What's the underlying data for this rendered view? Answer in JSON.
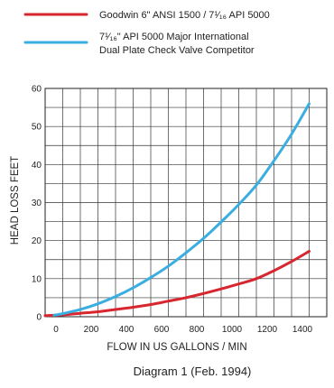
{
  "chart_data": {
    "type": "line",
    "title": "",
    "caption": "Diagram 1 (Feb. 1994)",
    "xlabel": "FLOW IN US GALLONS / MIN",
    "ylabel": "HEAD LOSS FEET",
    "xlim": [
      0,
      1600
    ],
    "ylim": [
      0,
      60
    ],
    "xticks": [
      0,
      200,
      400,
      600,
      800,
      1000,
      1200,
      1400
    ],
    "yticks": [
      0,
      10,
      20,
      30,
      40,
      50,
      60
    ],
    "grid": true,
    "legend_position": "top",
    "series": [
      {
        "name": "Goodwin 6\" ANSI 1500 / 7¹⁄₁₆ API 5000",
        "color": "#d7262e",
        "x": [
          0,
          100,
          200,
          300,
          400,
          500,
          600,
          700,
          800,
          900,
          1000,
          1100,
          1200,
          1300,
          1400,
          1500
        ],
        "y": [
          0.3,
          0.5,
          0.9,
          1.3,
          1.9,
          2.5,
          3.2,
          4.1,
          5.0,
          6.1,
          7.3,
          8.6,
          10.0,
          12.1,
          14.5,
          17.2
        ]
      },
      {
        "name": "7¹⁄₁₆\" API 5000 Major International Dual Plate Check Valve Competitor",
        "name_lines": [
          "7¹⁄₁₆\" API 5000 Major International",
          "Dual Plate Check Valve Competitor"
        ],
        "color": "#3aaee0",
        "x": [
          50,
          100,
          200,
          300,
          400,
          500,
          600,
          700,
          800,
          900,
          1000,
          1100,
          1200,
          1300,
          1400,
          1500
        ],
        "y": [
          0.4,
          0.8,
          1.9,
          3.4,
          5.3,
          7.6,
          10.3,
          13.3,
          16.8,
          20.6,
          24.9,
          29.5,
          34.6,
          41.0,
          48.0,
          56.0
        ]
      }
    ]
  }
}
